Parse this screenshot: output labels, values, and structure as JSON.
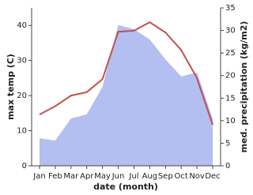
{
  "chart_data": {
    "type": "line",
    "categories": [
      "Jan",
      "Feb",
      "Mar",
      "Apr",
      "May",
      "Jun",
      "Jul",
      "Aug",
      "Sep",
      "Oct",
      "Nov",
      "Dec"
    ],
    "series": [
      {
        "name": "med. precipitation (kg/m2)",
        "color": "#b3bff0",
        "axis": "y2",
        "kind": "area",
        "values": [
          6.1,
          5.6,
          10.5,
          11.4,
          17.5,
          31.2,
          30.3,
          28,
          23.6,
          19.8,
          20.7,
          10.5
        ]
      },
      {
        "name": "max temp (C)",
        "color": "#c0504d",
        "kind": "line",
        "values": [
          14.6,
          17,
          20,
          21,
          24.7,
          38.2,
          38.5,
          40.9,
          38,
          33,
          25,
          11.7
        ]
      }
    ],
    "xlabel": "date (month)",
    "ylabel": "max temp (C)",
    "y2label": "med. precipitation (kg/m2)",
    "ylim": [
      0,
      45
    ],
    "yticks": [
      0,
      10,
      20,
      30,
      40
    ],
    "y2lim": [
      0,
      35
    ],
    "y2ticks": [
      0,
      5,
      10,
      15,
      20,
      25,
      30,
      35
    ]
  }
}
